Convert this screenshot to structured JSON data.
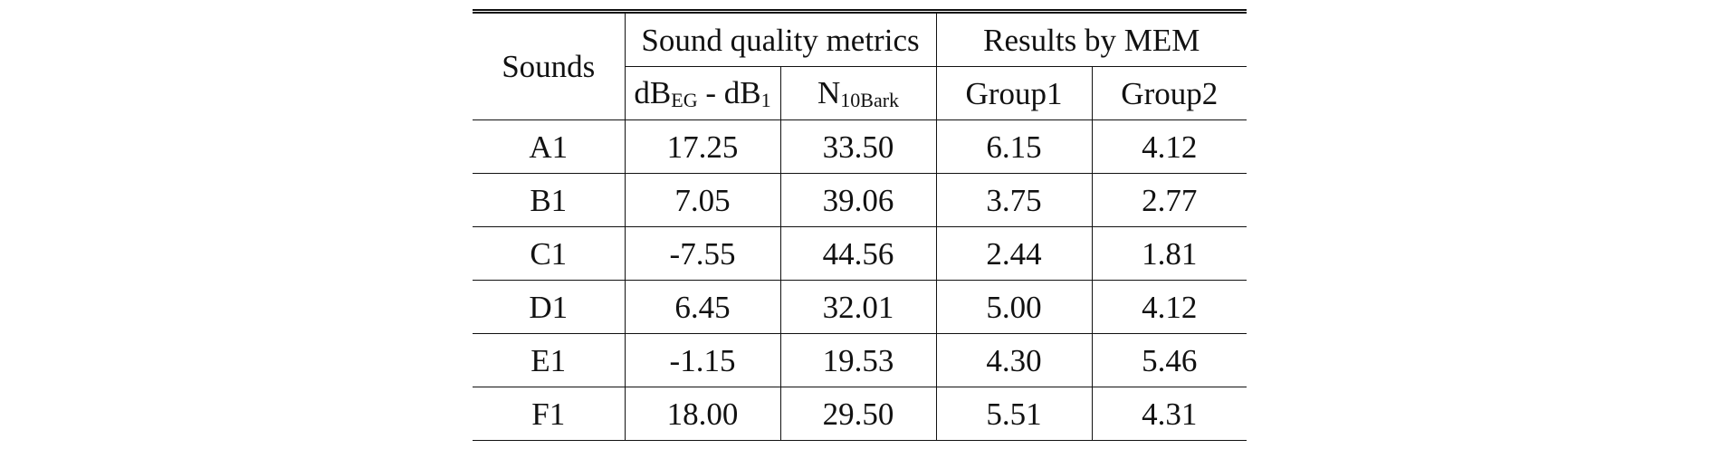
{
  "header": {
    "sounds": "Sounds",
    "sound_quality_metrics": "Sound quality metrics",
    "results_by_mem": "Results by MEM",
    "metric1_main1": "dB",
    "metric1_sub1": "EG",
    "metric1_mid": " - dB",
    "metric1_sub2": "1",
    "metric2_main": "N",
    "metric2_sub": "10Bark",
    "group1": "Group1",
    "group2": "Group2"
  },
  "rows": [
    {
      "sound": "A1",
      "db": "17.25",
      "n": "33.50",
      "g1": "6.15",
      "g2": "4.12"
    },
    {
      "sound": "B1",
      "db": "7.05",
      "n": "39.06",
      "g1": "3.75",
      "g2": "2.77"
    },
    {
      "sound": "C1",
      "db": "-7.55",
      "n": "44.56",
      "g1": "2.44",
      "g2": "1.81"
    },
    {
      "sound": "D1",
      "db": "6.45",
      "n": "32.01",
      "g1": "5.00",
      "g2": "4.12"
    },
    {
      "sound": "E1",
      "db": "-1.15",
      "n": "19.53",
      "g1": "4.30",
      "g2": "5.46"
    },
    {
      "sound": "F1",
      "db": "18.00",
      "n": "29.50",
      "g1": "5.51",
      "g2": "4.31"
    }
  ]
}
